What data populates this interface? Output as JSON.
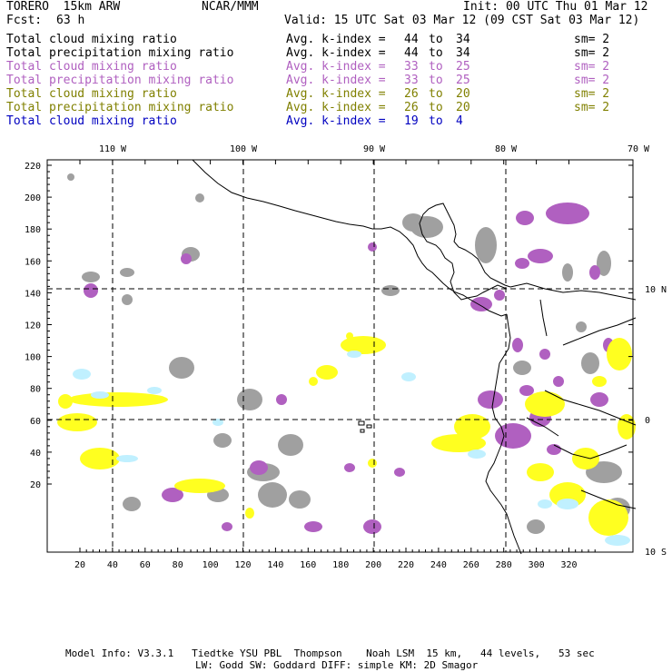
{
  "header": {
    "model": "TORERO  15km ARW",
    "center": "NCAR/MMM",
    "init": "Init: 00 UTC Thu 01 Mar 12",
    "fcst_label": "Fcst:",
    "fcst_value": "63 h",
    "valid": "Valid: 15 UTC Sat 03 Mar 12 (09 CST Sat 03 Mar 12)"
  },
  "legend": [
    {
      "field": "Total cloud mixing ratio",
      "kindex_label": "Avg. k-index =",
      "from": "44",
      "to_word": "to",
      "to": "34",
      "sm": "sm= 2",
      "color": "#000000"
    },
    {
      "field": "Total precipitation mixing ratio",
      "kindex_label": "Avg. k-index =",
      "from": "44",
      "to_word": "to",
      "to": "34",
      "sm": "sm= 2",
      "color": "#000000"
    },
    {
      "field": "Total cloud mixing ratio",
      "kindex_label": "Avg. k-index =",
      "from": "33",
      "to_word": "to",
      "to": "25",
      "sm": "sm= 2",
      "color": "#b060c0"
    },
    {
      "field": "Total precipitation mixing ratio",
      "kindex_label": "Avg. k-index =",
      "from": "33",
      "to_word": "to",
      "to": "25",
      "sm": "sm= 2",
      "color": "#b060c0"
    },
    {
      "field": "Total cloud mixing ratio",
      "kindex_label": "Avg. k-index =",
      "from": "26",
      "to_word": "to",
      "to": "20",
      "sm": "sm= 2",
      "color": "#808000"
    },
    {
      "field": "Total precipitation mixing ratio",
      "kindex_label": "Avg. k-index =",
      "from": "26",
      "to_word": "to",
      "to": "20",
      "sm": "sm= 2",
      "color": "#808000"
    },
    {
      "field": "Total cloud mixing ratio",
      "kindex_label": "Avg. k-index =",
      "from": "19",
      "to_word": "to",
      "to": "4",
      "sm": "",
      "color": "#0000c0"
    }
  ],
  "map": {
    "top_labels": [
      "110 W",
      "100 W",
      "90 W",
      "80 W",
      "70 W"
    ],
    "right_labels": [
      "10 N",
      "0",
      "10 S"
    ],
    "y_ticks": [
      "220",
      "200",
      "180",
      "160",
      "140",
      "120",
      "100",
      "80",
      "60",
      "40",
      "20"
    ],
    "x_ticks": [
      "20",
      "40",
      "60",
      "80",
      "100",
      "120",
      "140",
      "160",
      "180",
      "200",
      "220",
      "240",
      "260",
      "280",
      "300",
      "320"
    ],
    "colors": {
      "gray": "#a0a0a0",
      "purple": "#b060c0",
      "yellow": "#ffff20",
      "cyan": "#c0f0ff"
    }
  },
  "footer": {
    "line1": "Model Info: V3.3.1   Tiedtke YSU PBL  Thompson    Noah LSM  15 km,   44 levels,   53 sec",
    "line2": "LW: Godd SW: Goddard DIFF: simple KM: 2D Smagor"
  }
}
